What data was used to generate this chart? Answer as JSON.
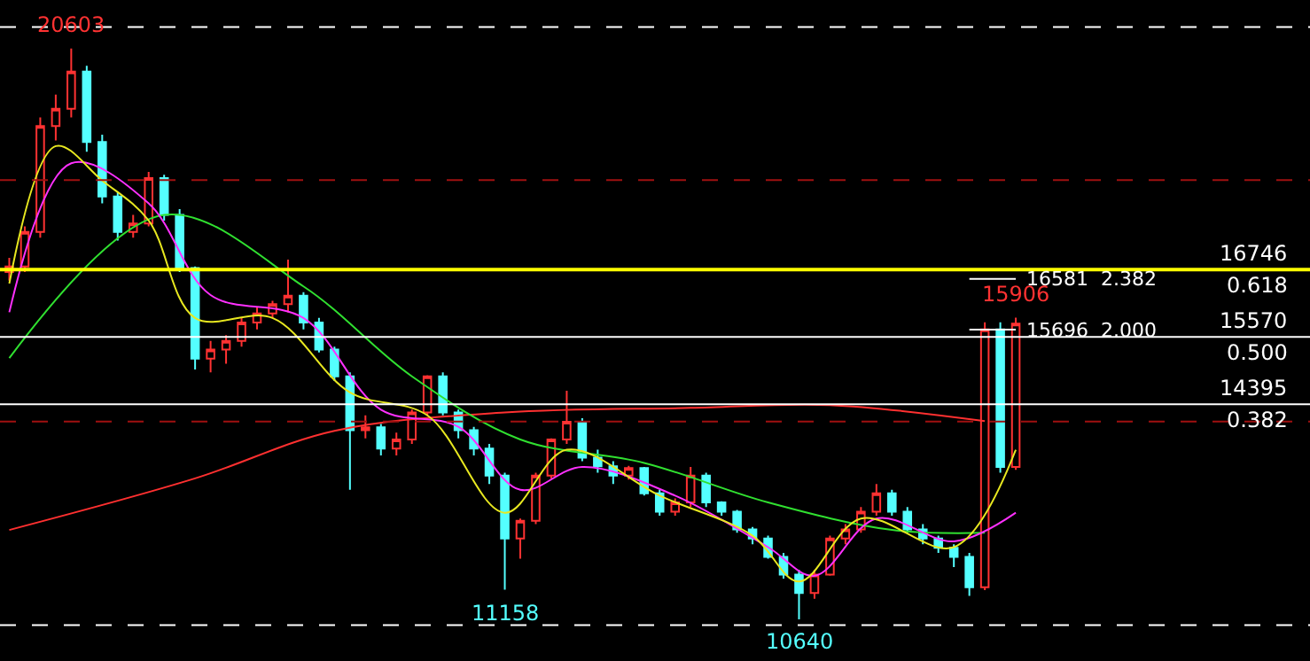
{
  "chart_data": {
    "type": "candlestick",
    "categories": [
      null,
      null,
      null,
      null,
      null,
      null,
      null,
      null,
      null,
      null,
      null,
      null,
      null,
      null,
      null,
      null,
      null,
      null,
      null,
      null,
      null,
      null,
      null,
      null,
      null,
      null,
      null,
      null,
      null,
      null,
      null,
      null,
      null,
      null,
      null,
      null,
      null,
      null,
      null,
      null,
      null,
      null,
      null,
      null,
      null,
      null,
      null,
      null,
      null,
      null,
      null,
      null,
      null,
      null,
      null,
      null,
      null,
      null,
      null,
      null,
      null,
      null,
      null,
      null,
      null,
      null
    ],
    "ohlc": [
      [
        16700,
        16950,
        16550,
        16800
      ],
      [
        16800,
        17500,
        16700,
        17400
      ],
      [
        17400,
        19400,
        17300,
        19250
      ],
      [
        19250,
        19800,
        19000,
        19550
      ],
      [
        19550,
        20603,
        19400,
        20200
      ],
      [
        20200,
        20300,
        18800,
        18970
      ],
      [
        18970,
        19100,
        17900,
        18020
      ],
      [
        18020,
        18100,
        17250,
        17400
      ],
      [
        17400,
        17700,
        17300,
        17550
      ],
      [
        17550,
        18450,
        17500,
        18340
      ],
      [
        18340,
        18400,
        17600,
        17700
      ],
      [
        17700,
        17800,
        16700,
        16770
      ],
      [
        16770,
        16800,
        15000,
        15190
      ],
      [
        15190,
        15500,
        14950,
        15350
      ],
      [
        15350,
        15600,
        15100,
        15500
      ],
      [
        15500,
        15900,
        15400,
        15820
      ],
      [
        15820,
        16100,
        15700,
        15980
      ],
      [
        15980,
        16200,
        15900,
        16140
      ],
      [
        16140,
        16920,
        16000,
        16290
      ],
      [
        16290,
        16350,
        15700,
        15820
      ],
      [
        15820,
        15900,
        15300,
        15350
      ],
      [
        15350,
        15400,
        14800,
        14880
      ],
      [
        14880,
        14950,
        12900,
        13940
      ],
      [
        13940,
        14200,
        13800,
        13990
      ],
      [
        13990,
        14050,
        13500,
        13620
      ],
      [
        13620,
        13900,
        13500,
        13780
      ],
      [
        13780,
        14300,
        13700,
        14250
      ],
      [
        14250,
        14900,
        14200,
        14880
      ],
      [
        14880,
        14950,
        14200,
        14250
      ],
      [
        14250,
        14300,
        13800,
        13940
      ],
      [
        13940,
        14000,
        13500,
        13620
      ],
      [
        13620,
        13700,
        13000,
        13150
      ],
      [
        13150,
        13200,
        11158,
        12050
      ],
      [
        12050,
        12400,
        11700,
        12360
      ],
      [
        12360,
        13200,
        12300,
        13150
      ],
      [
        13150,
        13800,
        13100,
        13780
      ],
      [
        13780,
        14630,
        13700,
        14090
      ],
      [
        14090,
        14150,
        13400,
        13460
      ],
      [
        13460,
        13600,
        13200,
        13310
      ],
      [
        13310,
        13400,
        13000,
        13150
      ],
      [
        13150,
        13320,
        13080,
        13280
      ],
      [
        13280,
        13300,
        12800,
        12840
      ],
      [
        12840,
        12900,
        12450,
        12520
      ],
      [
        12520,
        12750,
        12450,
        12680
      ],
      [
        12680,
        13300,
        12600,
        13150
      ],
      [
        13150,
        13200,
        12600,
        12680
      ],
      [
        12680,
        12700,
        12450,
        12520
      ],
      [
        12520,
        12550,
        12150,
        12210
      ],
      [
        12210,
        12250,
        11950,
        12050
      ],
      [
        12050,
        12100,
        11700,
        11730
      ],
      [
        11730,
        11800,
        11350,
        11420
      ],
      [
        11420,
        11500,
        10640,
        11100
      ],
      [
        11100,
        11500,
        11000,
        11420
      ],
      [
        11420,
        12100,
        11400,
        12050
      ],
      [
        12050,
        12300,
        11950,
        12210
      ],
      [
        12210,
        12600,
        12150,
        12520
      ],
      [
        12520,
        13000,
        12450,
        12840
      ],
      [
        12840,
        12900,
        12450,
        12520
      ],
      [
        12520,
        12600,
        12150,
        12210
      ],
      [
        12210,
        12300,
        11950,
        12050
      ],
      [
        12050,
        12100,
        11800,
        11890
      ],
      [
        11890,
        11950,
        11550,
        11730
      ],
      [
        11730,
        11800,
        11050,
        11200
      ],
      [
        11200,
        15823,
        11150,
        15700
      ],
      [
        15700,
        15823,
        13200,
        13300
      ],
      [
        13300,
        15906,
        13250,
        15800
      ]
    ],
    "series": [
      {
        "type": "line",
        "color": "#ff3030",
        "values": [
          12200,
          null,
          null,
          null,
          null,
          null,
          null,
          null,
          null,
          null,
          null,
          null,
          13100,
          null,
          null,
          null,
          null,
          null,
          null,
          null,
          null,
          13930,
          null,
          null,
          null,
          null,
          null,
          null,
          null,
          null,
          null,
          null,
          14250,
          null,
          null,
          null,
          null,
          null,
          null,
          null,
          null,
          null,
          null,
          null,
          14330,
          null,
          null,
          null,
          null,
          null,
          null,
          null,
          null,
          14380,
          null,
          null,
          null,
          null,
          null,
          null,
          null,
          null,
          null,
          14100,
          null,
          null
        ]
      },
      {
        "type": "line",
        "color": "#30e030",
        "values": [
          15200,
          null,
          null,
          null,
          null,
          null,
          null,
          null,
          null,
          null,
          17700,
          null,
          null,
          null,
          null,
          null,
          null,
          null,
          null,
          16450,
          null,
          null,
          null,
          null,
          null,
          null,
          14880,
          null,
          null,
          null,
          null,
          null,
          null,
          13780,
          null,
          null,
          null,
          null,
          null,
          null,
          null,
          13370,
          null,
          null,
          null,
          null,
          null,
          null,
          null,
          12680,
          null,
          null,
          null,
          null,
          null,
          null,
          null,
          12200,
          null,
          null,
          null,
          null,
          null,
          12150,
          null,
          null
        ]
      },
      {
        "type": "line",
        "color": "#ff30ff",
        "values": [
          16000,
          null,
          null,
          null,
          18600,
          null,
          null,
          null,
          null,
          17900,
          null,
          null,
          null,
          16300,
          null,
          null,
          null,
          null,
          null,
          15900,
          null,
          null,
          null,
          null,
          14300,
          null,
          null,
          null,
          null,
          14000,
          null,
          null,
          null,
          12900,
          null,
          null,
          null,
          13300,
          null,
          null,
          null,
          null,
          null,
          12800,
          null,
          null,
          null,
          null,
          null,
          11900,
          null,
          null,
          11400,
          null,
          null,
          null,
          12400,
          null,
          null,
          null,
          null,
          12000,
          null,
          null,
          null,
          12500
        ]
      },
      {
        "type": "line",
        "color": "#e8e820",
        "values": [
          16500,
          null,
          null,
          18900,
          null,
          null,
          18300,
          null,
          null,
          17600,
          null,
          null,
          15900,
          null,
          null,
          null,
          null,
          15900,
          null,
          null,
          null,
          null,
          14600,
          null,
          null,
          null,
          null,
          14200,
          null,
          null,
          null,
          null,
          12500,
          null,
          null,
          null,
          13600,
          null,
          null,
          null,
          null,
          null,
          12800,
          null,
          null,
          null,
          null,
          null,
          12100,
          null,
          null,
          11300,
          null,
          null,
          null,
          12400,
          null,
          null,
          null,
          null,
          null,
          11900,
          null,
          null,
          null,
          13600
        ]
      }
    ],
    "ref_lines": [
      {
        "axis": "y",
        "value": 16746,
        "label": "16746",
        "color": "#ffff00",
        "line_style": "solid"
      },
      {
        "axis": "y",
        "value": 15570,
        "label": "15570",
        "color": "#ffffff",
        "line_style": "solid"
      },
      {
        "axis": "y",
        "value": 14395,
        "label": "14395",
        "color": "#ffffff",
        "line_style": "solid"
      },
      {
        "axis": "y",
        "value": 18307,
        "color": "#a01010",
        "line_style": "dashed"
      },
      {
        "axis": "y",
        "value": 14093,
        "color": "#a01010",
        "line_style": "dashed"
      },
      {
        "axis": "y",
        "value": 20980,
        "color": "#ffffff",
        "line_style": "dashed"
      },
      {
        "axis": "y",
        "value": 10539,
        "color": "#ffffff",
        "line_style": "dashed"
      },
      {
        "axis": "y",
        "value": 16581,
        "label": "16581  2.382"
      },
      {
        "axis": "y",
        "value": 15696,
        "label": "15696  2.000"
      }
    ],
    "annotations": [
      {
        "text": "20603",
        "y": 20603
      },
      {
        "text": "11158",
        "y": 11158
      },
      {
        "text": "10640",
        "y": 10640
      },
      {
        "text": "15906",
        "y": 15906
      },
      {
        "text": "0.618",
        "y": 16746
      },
      {
        "text": "0.500",
        "y": 15570
      },
      {
        "text": "0.382",
        "y": 14395
      }
    ]
  }
}
